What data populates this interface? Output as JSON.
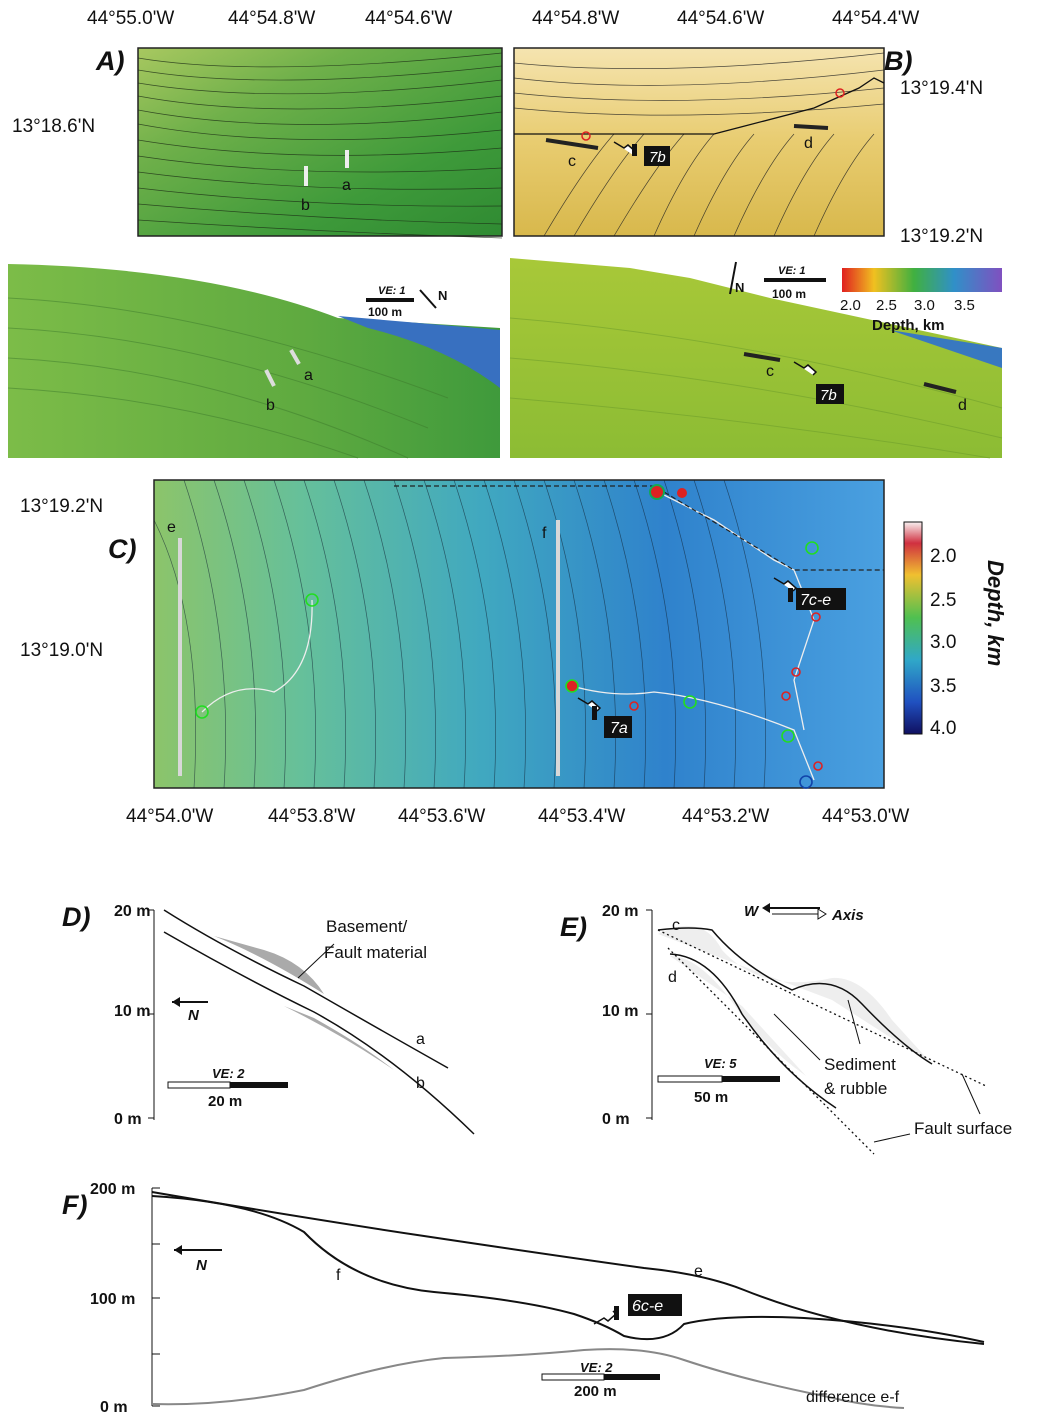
{
  "panels": {
    "A": {
      "letter": "A)",
      "xticks": [
        "44°55.0'W",
        "44°54.8'W",
        "44°54.6'W"
      ],
      "yticks": [
        "13°18.6'N"
      ],
      "markers": [
        "a",
        "b"
      ]
    },
    "B": {
      "letter": "B)",
      "xticks": [
        "44°54.8'W",
        "44°54.6'W",
        "44°54.4'W"
      ],
      "yticks": [
        "13°19.4'N",
        "13°19.2'N"
      ],
      "markers": [
        "c",
        "d"
      ],
      "photo_label": "7b"
    },
    "A3d": {
      "markers": [
        "a",
        "b"
      ],
      "ve": "VE: 1",
      "scale": "100 m",
      "north": "N"
    },
    "B3d": {
      "markers": [
        "c",
        "d"
      ],
      "ve": "VE: 1",
      "scale": "100 m",
      "north": "N",
      "photo_label": "7b",
      "colorbar_ticks": [
        "2.0",
        "2.5",
        "3.0",
        "3.5"
      ],
      "colorbar_title": "Depth, km"
    },
    "C": {
      "letter": "C)",
      "xticks": [
        "44°54.0'W",
        "44°53.8'W",
        "44°53.6'W",
        "44°53.4'W",
        "44°53.2'W",
        "44°53.0'W"
      ],
      "yticks": [
        "13°19.2'N",
        "13°19.0'N"
      ],
      "markers": [
        "e",
        "f"
      ],
      "photo_labels": [
        "7c-e",
        "7a"
      ],
      "colorbar_ticks": [
        "2.0",
        "2.5",
        "3.0",
        "3.5",
        "4.0"
      ],
      "colorbar_title": "Depth, km"
    },
    "D": {
      "letter": "D)",
      "yticks": [
        "20 m",
        "10 m",
        "0 m"
      ],
      "north": "N",
      "ve": "VE: 2",
      "scale": "20 m",
      "annotation_line1": "Basement/",
      "annotation_line2": "Fault material",
      "profiles": [
        "a",
        "b"
      ]
    },
    "E": {
      "letter": "E)",
      "yticks": [
        "20 m",
        "10 m",
        "0 m"
      ],
      "direction_w": "W",
      "direction_axis": "Axis",
      "ve": "VE: 5",
      "scale": "50 m",
      "annotation_line1": "Sediment",
      "annotation_line2": "& rubble",
      "fault": "Fault surface",
      "profiles": [
        "c",
        "d"
      ]
    },
    "F": {
      "letter": "F)",
      "yticks": [
        "200 m",
        "100 m",
        "0 m"
      ],
      "north": "N",
      "ve": "VE: 2",
      "scale": "200 m",
      "profiles": [
        "e",
        "f"
      ],
      "difference": "difference e-f",
      "photo_label": "6c-e"
    }
  },
  "colors": {
    "shallow": "#f0d060",
    "mid": "#6cc04a",
    "deep": "#2b7fd4",
    "deepest": "#3a2a8a",
    "scarp": "#d44"
  }
}
